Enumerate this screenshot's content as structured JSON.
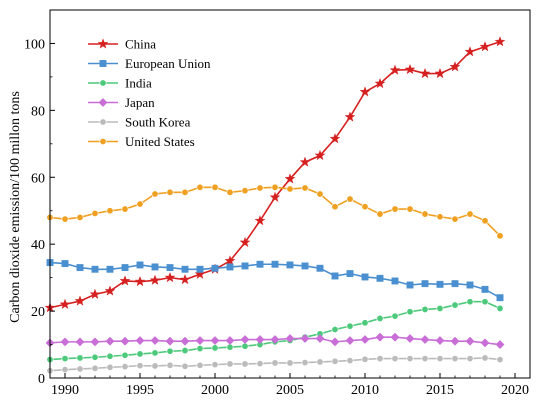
{
  "chart_data": {
    "type": "line",
    "title": "",
    "xlabel": "",
    "ylabel": "Carbon dioxide emission/100 millon tons",
    "xlim": [
      1989,
      2021
    ],
    "ylim": [
      0,
      110
    ],
    "xticks": [
      1990,
      1995,
      2000,
      2005,
      2010,
      2015,
      2020
    ],
    "yticks": [
      0,
      20,
      40,
      60,
      80,
      100
    ],
    "grid": false,
    "legend_position": "top-left",
    "x": [
      1989,
      1990,
      1991,
      1992,
      1993,
      1994,
      1995,
      1996,
      1997,
      1998,
      1999,
      2000,
      2001,
      2002,
      2003,
      2004,
      2005,
      2006,
      2007,
      2008,
      2009,
      2010,
      2011,
      2012,
      2013,
      2014,
      2015,
      2016,
      2017,
      2018,
      2019
    ],
    "series": [
      {
        "name": "China",
        "color": "#d62020",
        "marker": "star",
        "values": [
          21.0,
          22.0,
          23.0,
          25.0,
          26.0,
          29.0,
          28.8,
          29.2,
          30.0,
          29.4,
          31.0,
          32.5,
          35.0,
          40.5,
          47.0,
          54.0,
          59.5,
          64.5,
          66.5,
          71.5,
          78.0,
          85.5,
          88.0,
          92.0,
          92.2,
          91.0,
          91.0,
          93.0,
          97.5,
          99.0,
          100.5
        ]
      },
      {
        "name": "European Union",
        "color": "#4a90d0",
        "marker": "square",
        "values": [
          34.5,
          34.2,
          33.0,
          32.5,
          32.5,
          33.0,
          33.8,
          33.2,
          33.0,
          32.5,
          32.5,
          32.8,
          33.2,
          33.5,
          34.0,
          34.0,
          33.8,
          33.5,
          32.8,
          30.5,
          31.2,
          30.2,
          29.8,
          29.0,
          27.8,
          28.2,
          28.0,
          28.2,
          27.8,
          26.5,
          24.0
        ]
      },
      {
        "name": "India",
        "color": "#4cc97a",
        "marker": "circle",
        "values": [
          5.5,
          5.8,
          6.0,
          6.2,
          6.5,
          6.8,
          7.2,
          7.5,
          8.0,
          8.2,
          8.8,
          9.0,
          9.2,
          9.5,
          10.0,
          10.8,
          11.2,
          12.2,
          13.2,
          14.5,
          15.5,
          16.5,
          17.8,
          18.5,
          19.8,
          20.5,
          20.8,
          21.8,
          22.8,
          22.8,
          20.8
        ]
      },
      {
        "name": "Japan",
        "color": "#c86ed6",
        "marker": "diamond",
        "values": [
          10.5,
          10.8,
          10.8,
          10.8,
          11.0,
          11.0,
          11.2,
          11.2,
          11.0,
          11.0,
          11.2,
          11.2,
          11.2,
          11.5,
          11.5,
          11.5,
          11.8,
          11.8,
          11.8,
          10.8,
          11.2,
          11.5,
          12.2,
          12.2,
          11.8,
          11.5,
          11.2,
          11.0,
          11.0,
          10.5,
          10.0
        ]
      },
      {
        "name": "South Korea",
        "color": "#bbbbbb",
        "marker": "circle",
        "values": [
          2.2,
          2.5,
          2.7,
          2.9,
          3.2,
          3.4,
          3.7,
          3.6,
          3.8,
          3.5,
          3.8,
          4.0,
          4.2,
          4.2,
          4.3,
          4.5,
          4.5,
          4.6,
          4.8,
          5.0,
          5.2,
          5.6,
          5.8,
          5.8,
          5.8,
          5.8,
          5.8,
          5.8,
          5.8,
          6.0,
          5.5
        ]
      },
      {
        "name": "United States",
        "color": "#f0a020",
        "marker": "circle",
        "values": [
          48.0,
          47.5,
          48.0,
          49.2,
          50.0,
          50.5,
          52.0,
          55.0,
          55.5,
          55.5,
          57.0,
          57.0,
          55.5,
          56.0,
          56.8,
          57.0,
          56.5,
          56.8,
          55.0,
          51.2,
          53.5,
          51.2,
          49.0,
          50.5,
          50.5,
          49.0,
          48.2,
          47.5,
          49.0,
          47.0,
          42.5
        ]
      }
    ]
  }
}
